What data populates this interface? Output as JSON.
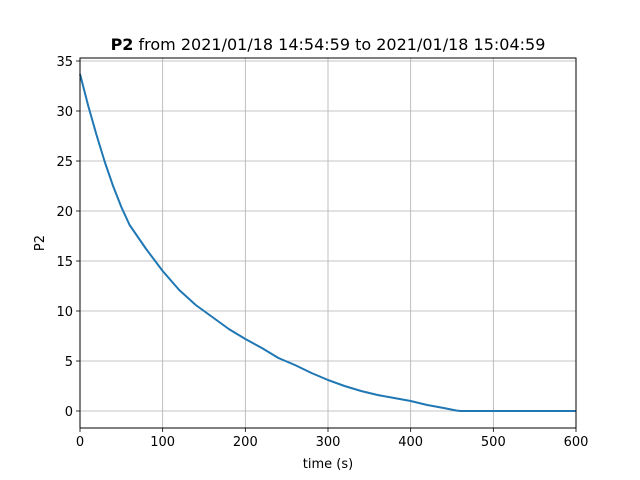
{
  "chart_data": {
    "type": "line",
    "title": {
      "bold": "P2",
      "rest": " from 2021/01/18 14:54:59 to 2021/01/18 15:04:59"
    },
    "xlabel": "time (s)",
    "ylabel": "P2",
    "xlim": [
      0,
      600
    ],
    "ylim": [
      -1.7,
      35.3
    ],
    "xticks": [
      0,
      100,
      200,
      300,
      400,
      500,
      600
    ],
    "yticks": [
      0,
      5,
      10,
      15,
      20,
      25,
      30,
      35
    ],
    "grid": true,
    "series": [
      {
        "color": "#1f77b4",
        "x": [
          0,
          10,
          20,
          30,
          40,
          50,
          60,
          80,
          100,
          120,
          140,
          160,
          180,
          200,
          220,
          240,
          260,
          280,
          300,
          320,
          340,
          360,
          380,
          400,
          420,
          440,
          455,
          460,
          500,
          600
        ],
        "y": [
          33.7,
          30.5,
          27.6,
          24.9,
          22.5,
          20.4,
          18.6,
          16.2,
          14.0,
          12.1,
          10.6,
          9.4,
          8.2,
          7.2,
          6.3,
          5.3,
          4.6,
          3.8,
          3.1,
          2.5,
          2.0,
          1.6,
          1.3,
          1.0,
          0.6,
          0.3,
          0.05,
          0.0,
          0.0,
          0.0
        ]
      }
    ]
  }
}
